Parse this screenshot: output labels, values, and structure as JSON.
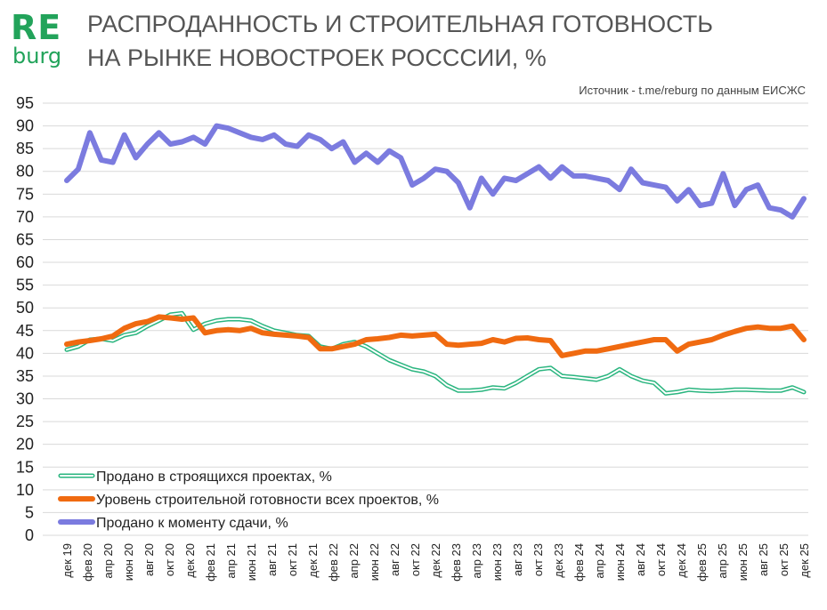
{
  "header": {
    "logo_top": "RE",
    "logo_bottom": "burg",
    "title_line1": "РАСПРОДАННОСТЬ И СТРОИТЕЛЬНАЯ ГОТОВНОСТЬ",
    "title_line2": "НА РЫНКЕ НОВОСТРОЕК РОСССИИ, %",
    "source": "Источник - t.me/reburg по данным ЕИСЖС"
  },
  "colors": {
    "green": "#2ab57f",
    "orange": "#f06a10",
    "blue": "#7b7bdf",
    "brand": "#22a35a"
  },
  "chart_data": {
    "type": "line",
    "title": "РАСПРОДАННОСТЬ И СТРОИТЕЛЬНАЯ ГОТОВНОСТЬ НА РЫНКЕ НОВОСТРОЕК РОСССИИ, %",
    "ylim": [
      0,
      95
    ],
    "yticks": [
      0,
      5,
      10,
      15,
      20,
      25,
      30,
      35,
      40,
      45,
      50,
      55,
      60,
      65,
      70,
      75,
      80,
      85,
      90,
      95
    ],
    "grid": true,
    "legend_position": "bottom-left",
    "x_labels": [
      "дек 19",
      "фев 20",
      "апр 20",
      "июн 20",
      "авг 20",
      "окт 20",
      "дек 20",
      "фев 21",
      "апр 21",
      "июн 21",
      "авг 21",
      "окт 21",
      "дек 21",
      "фев 22",
      "апр 22",
      "июн 22",
      "авг 22",
      "окт 22",
      "дек 22",
      "фев 23",
      "апр 23",
      "июн 23",
      "авг 23",
      "окт 23",
      "дек 23",
      "фев 24",
      "апр 24",
      "июн 24",
      "авг 24",
      "окт 24",
      "дек 24",
      "фев 25",
      "апр 25",
      "июн 25",
      "авг 25",
      "окт 25",
      "дек 25"
    ],
    "series": [
      {
        "name": "Продано в строящихся проектах, %",
        "style": "double-line",
        "values": [
          40.8,
          41.5,
          43.0,
          43.2,
          42.8,
          44.0,
          44.5,
          46.0,
          47.2,
          48.5,
          48.8,
          45.2,
          46.5,
          47.2,
          47.5,
          47.5,
          47.2,
          46.0,
          45.0,
          44.5,
          44.0,
          43.8,
          41.5,
          41.0,
          42.0,
          42.5,
          41.5,
          40.0,
          38.5,
          37.5,
          36.5,
          36.0,
          35.0,
          33.0,
          31.8,
          31.8,
          32.0,
          32.5,
          32.3,
          33.5,
          35.0,
          36.5,
          36.8,
          35.0,
          34.8,
          34.5,
          34.2,
          35.0,
          36.5,
          35.0,
          34.0,
          33.5,
          31.2,
          31.5,
          32.0,
          31.8,
          31.7,
          31.8,
          32.0,
          32.0,
          31.9,
          31.8,
          31.8,
          32.5,
          31.5
        ]
      },
      {
        "name": "Уровень строительной готовности всех проектов, %",
        "style": "thick-line",
        "values": [
          42.0,
          42.5,
          42.8,
          43.2,
          43.8,
          45.5,
          46.5,
          47.0,
          48.0,
          47.8,
          47.5,
          47.8,
          44.5,
          45.0,
          45.2,
          45.0,
          45.5,
          44.5,
          44.2,
          44.0,
          43.8,
          43.5,
          41.0,
          41.0,
          41.5,
          42.0,
          43.0,
          43.2,
          43.5,
          44.0,
          43.8,
          44.0,
          44.2,
          42.0,
          41.8,
          42.0,
          42.2,
          43.0,
          42.5,
          43.3,
          43.4,
          43.0,
          42.8,
          39.5,
          40.0,
          40.5,
          40.5,
          41.0,
          41.5,
          42.0,
          42.5,
          43.0,
          43.0,
          40.5,
          42.0,
          42.5,
          43.0,
          44.0,
          44.8,
          45.5,
          45.8,
          45.5,
          45.5,
          46.0,
          43.0
        ]
      },
      {
        "name": "Продано  к моменту сдачи, %",
        "style": "thick-line",
        "values": [
          78.0,
          80.5,
          88.5,
          82.5,
          82.0,
          88.0,
          83.0,
          86.0,
          88.5,
          86.0,
          86.5,
          87.5,
          86.0,
          90.0,
          89.5,
          88.5,
          87.5,
          87.0,
          88.0,
          86.0,
          85.5,
          88.0,
          87.0,
          85.0,
          86.5,
          82.0,
          84.0,
          82.0,
          84.5,
          83.0,
          77.0,
          78.5,
          80.5,
          80.0,
          77.5,
          72.0,
          78.5,
          75.0,
          78.5,
          78.0,
          79.5,
          81.0,
          78.5,
          81.0,
          79.0,
          79.0,
          78.5,
          78.0,
          76.0,
          80.5,
          77.5,
          77.0,
          76.5,
          73.5,
          76.0,
          72.5,
          73.0,
          79.5,
          72.5,
          76.0,
          77.0,
          72.0,
          71.5,
          70.0,
          74.0
        ]
      }
    ]
  }
}
